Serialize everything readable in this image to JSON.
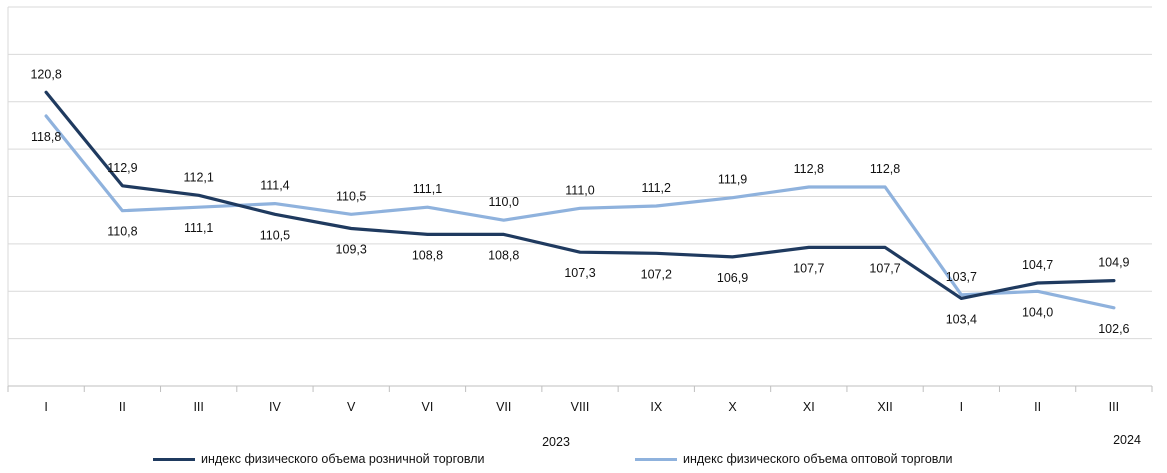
{
  "chart_data": {
    "type": "line",
    "categories": [
      "I",
      "II",
      "III",
      "IV",
      "V",
      "VI",
      "VII",
      "VIII",
      "IX",
      "X",
      "XI",
      "XII",
      "I",
      "II",
      "III"
    ],
    "year_labels": [
      "2023",
      "2024"
    ],
    "ylim": [
      96,
      128
    ],
    "grid": true,
    "legend_position": "bottom",
    "series": [
      {
        "name": "индекс физического объема розничной торговли",
        "color": "#1f3a5f",
        "values": [
          120.8,
          112.9,
          112.1,
          110.5,
          109.3,
          108.8,
          108.8,
          107.3,
          107.2,
          106.9,
          107.7,
          107.7,
          103.4,
          104.7,
          104.9
        ],
        "value_labels": [
          "120,8",
          "112,9",
          "112,1",
          "110,5",
          "109,3",
          "108,8",
          "108,8",
          "107,3",
          "107,2",
          "106,9",
          "107,7",
          "107,7",
          "103,4",
          "104,7",
          "104,9"
        ]
      },
      {
        "name": "индекс физического объема оптовой торговли",
        "color": "#8fb2dd",
        "values": [
          118.8,
          110.8,
          111.1,
          111.4,
          110.5,
          111.1,
          110.0,
          111.0,
          111.2,
          111.9,
          112.8,
          112.8,
          103.7,
          104.0,
          102.6
        ],
        "value_labels": [
          "118,8",
          "110,8",
          "111,1",
          "111,4",
          "110,5",
          "111,1",
          "110,0",
          "111,0",
          "111,2",
          "111,9",
          "112,8",
          "112,8",
          "103,7",
          "104,0",
          "102,6"
        ]
      }
    ]
  }
}
